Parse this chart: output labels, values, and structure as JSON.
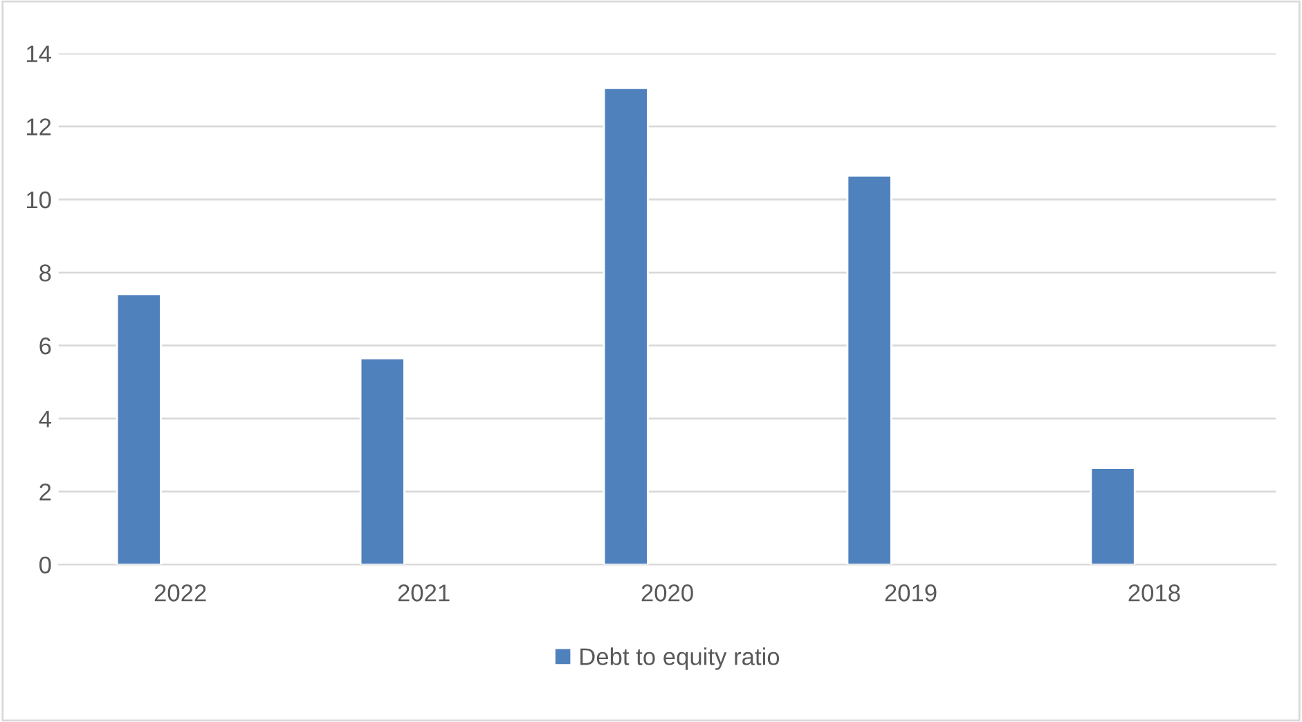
{
  "chart_data": {
    "type": "bar",
    "categories": [
      "2022",
      "2021",
      "2020",
      "2019",
      "2018"
    ],
    "series": [
      {
        "name": "Debt to equity ratio",
        "color": "#4f81bd",
        "values": [
          7.4,
          5.65,
          13.05,
          10.65,
          2.65
        ]
      }
    ],
    "ylim": [
      0,
      14
    ],
    "yticks": [
      0,
      2,
      4,
      6,
      8,
      10,
      12,
      14
    ],
    "grid": "y",
    "legend": "bottom"
  }
}
